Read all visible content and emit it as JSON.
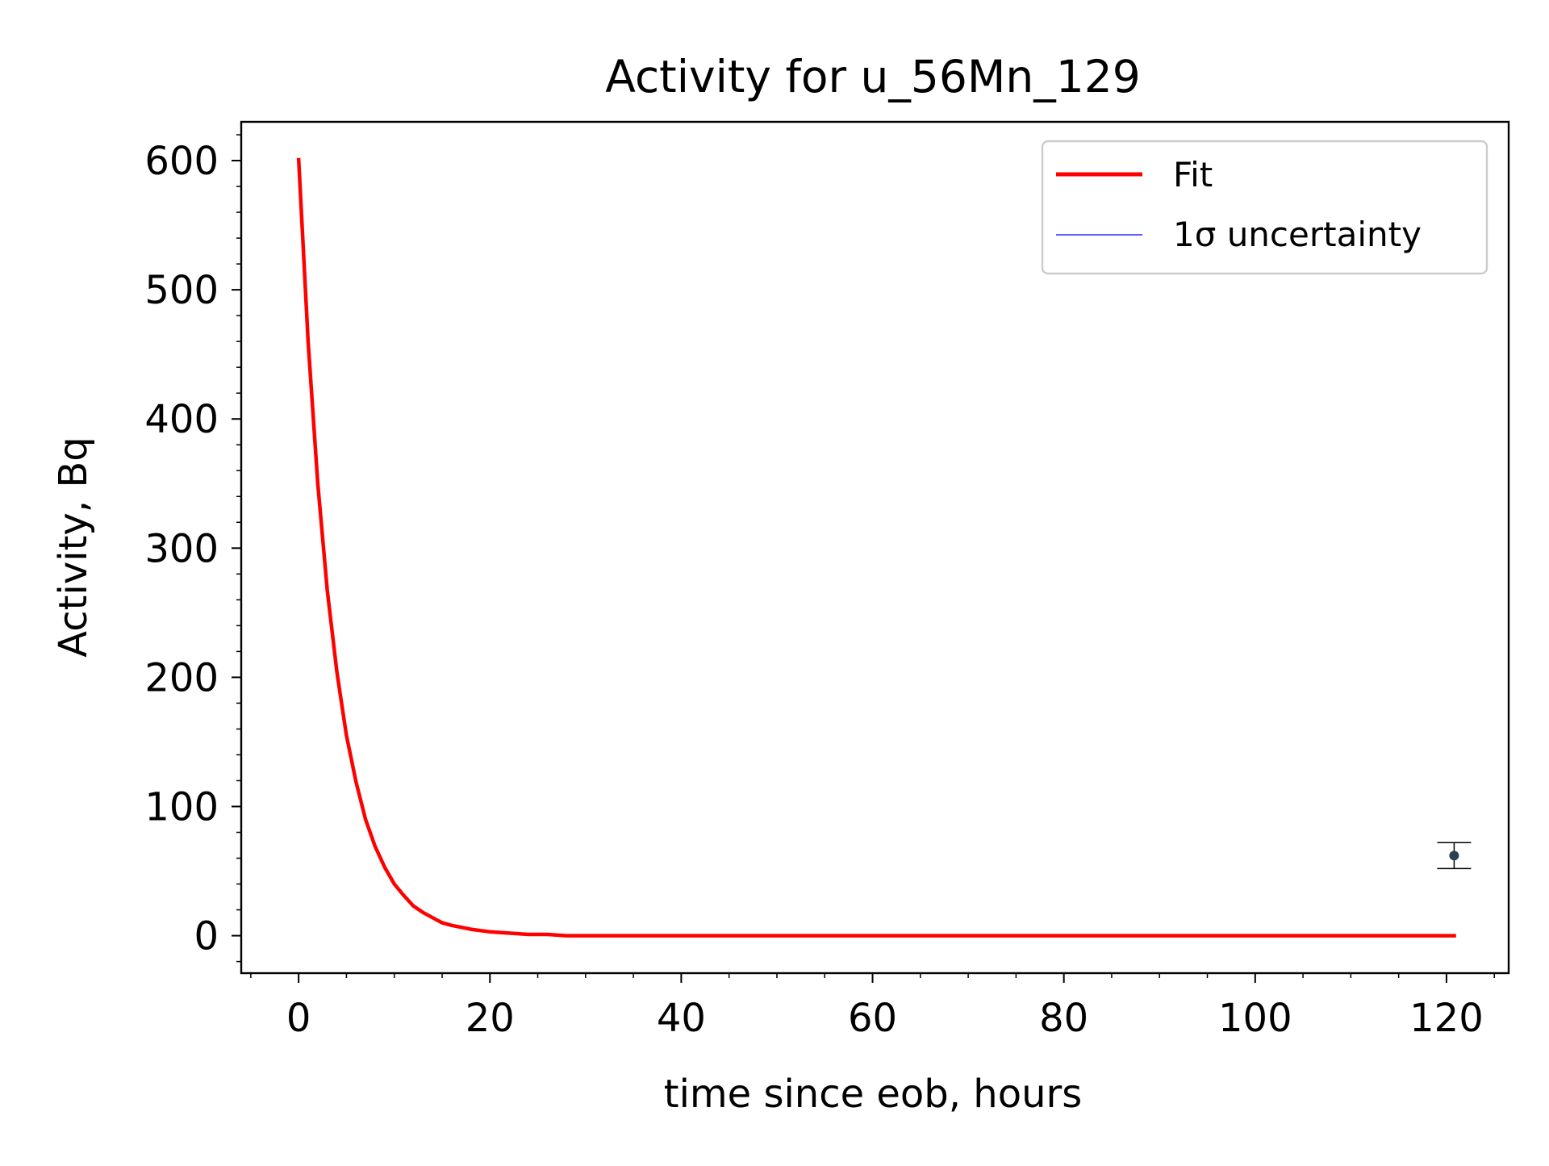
{
  "chart_data": {
    "type": "line",
    "title": "Activity for u_56Mn_129",
    "xlabel": "time since eob, hours",
    "ylabel": "Activity, Bq",
    "xlim": [
      -6,
      126.5
    ],
    "ylim": [
      -29,
      630
    ],
    "x_ticks": [
      0,
      20,
      40,
      60,
      80,
      100,
      120
    ],
    "y_ticks": [
      0,
      100,
      200,
      300,
      400,
      500,
      600
    ],
    "x_minor_step": 5,
    "y_minor_step": 20,
    "grid": false,
    "legend_position": "top-right",
    "legend": [
      {
        "label": "Fit",
        "color": "#ff0000"
      },
      {
        "label": "1σ uncertainty",
        "color": "#0000ff"
      }
    ],
    "series": [
      {
        "name": "Fit",
        "color": "#ff0000",
        "x": [
          0,
          1,
          2,
          3,
          4,
          5,
          6,
          7,
          8,
          9,
          10,
          11,
          12,
          13,
          14,
          15,
          16,
          18,
          20,
          22,
          24,
          26,
          28,
          30,
          35,
          40,
          50,
          60,
          70,
          80,
          90,
          100,
          110,
          121
        ],
        "y": [
          602,
          459,
          350,
          267,
          204,
          155,
          119,
          90,
          69,
          53,
          40,
          31,
          23,
          18,
          14,
          10,
          8,
          5,
          3,
          2,
          1,
          1,
          0,
          0,
          0,
          0,
          0,
          0,
          0,
          0,
          0,
          0,
          0,
          0
        ]
      }
    ],
    "measurements": [
      {
        "x": 120.8,
        "y": 62,
        "yerr": 10,
        "color": "#2c3e50"
      }
    ]
  }
}
